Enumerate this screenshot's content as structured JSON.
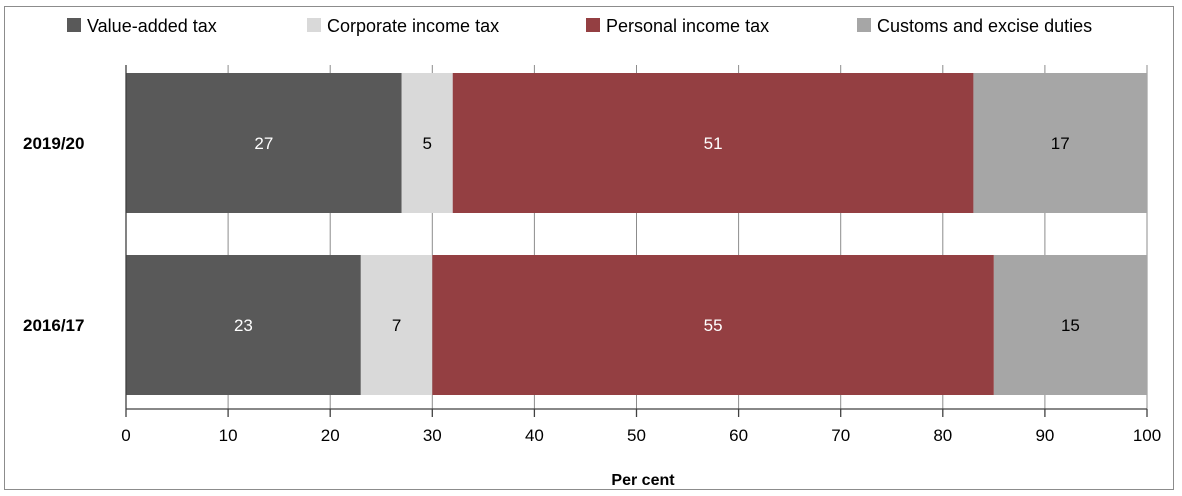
{
  "chart_data": {
    "type": "bar",
    "orientation": "horizontal",
    "stacked": true,
    "title": "",
    "xlabel": "Per cent",
    "ylabel": "",
    "xlim": [
      0,
      100
    ],
    "x_ticks": [
      "0",
      "10",
      "20",
      "30",
      "40",
      "50",
      "60",
      "70",
      "80",
      "90",
      "100"
    ],
    "categories": [
      "2019/20",
      "2016/17"
    ],
    "series": [
      {
        "name": "Value-added tax",
        "color": "#595959",
        "label_color": "#ffffff",
        "values": [
          27,
          23
        ]
      },
      {
        "name": "Corporate income tax",
        "color": "#d9d9d9",
        "label_color": "#000000",
        "values": [
          5,
          7
        ]
      },
      {
        "name": "Personal income tax",
        "color": "#943f42",
        "label_color": "#ffffff",
        "values": [
          51,
          55
        ]
      },
      {
        "name": "Customs and excise duties",
        "color": "#a6a6a6",
        "label_color": "#000000",
        "values": [
          17,
          15
        ]
      }
    ],
    "grid": true,
    "legend_position": "top"
  }
}
